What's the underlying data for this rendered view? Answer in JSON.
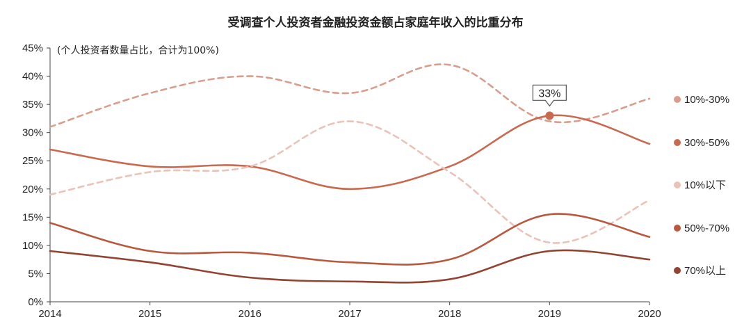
{
  "chart_data": {
    "type": "line",
    "title": "受调查个人投资者金融投资金额占家庭年收入的比重分布",
    "subtitle": "(个人投资者数量占比，合计为100%)",
    "x": [
      "2014",
      "2015",
      "2016",
      "2017",
      "2018",
      "2019",
      "2020"
    ],
    "y_ticks": [
      "0%",
      "5%",
      "10%",
      "15%",
      "20%",
      "25%",
      "30%",
      "35%",
      "40%",
      "45%"
    ],
    "ylim": [
      0,
      45
    ],
    "y_unit": "%",
    "grid": false,
    "legend_position": "right",
    "series": [
      {
        "name": "10%-30%",
        "values": [
          31,
          37,
          40,
          37,
          42,
          32,
          36
        ],
        "color": "#d99d8c",
        "dashed": true
      },
      {
        "name": "30%-50%",
        "values": [
          27,
          24,
          24,
          20,
          24,
          33,
          28
        ],
        "color": "#c9694f",
        "dashed": false
      },
      {
        "name": "10%以下",
        "values": [
          19,
          23,
          24,
          32,
          23,
          10.5,
          18
        ],
        "color": "#eac2b7",
        "dashed": true
      },
      {
        "name": "50%-70%",
        "values": [
          14,
          9,
          8.7,
          7,
          7.5,
          15.5,
          11.5
        ],
        "color": "#b8583d",
        "dashed": false
      },
      {
        "name": "70%以上",
        "values": [
          9,
          7,
          4.3,
          3.6,
          4,
          9,
          7.5
        ],
        "color": "#934331",
        "dashed": false
      }
    ],
    "annotation": {
      "text": "33%",
      "series": "30%-50%",
      "x": "2019",
      "y": 33
    }
  }
}
